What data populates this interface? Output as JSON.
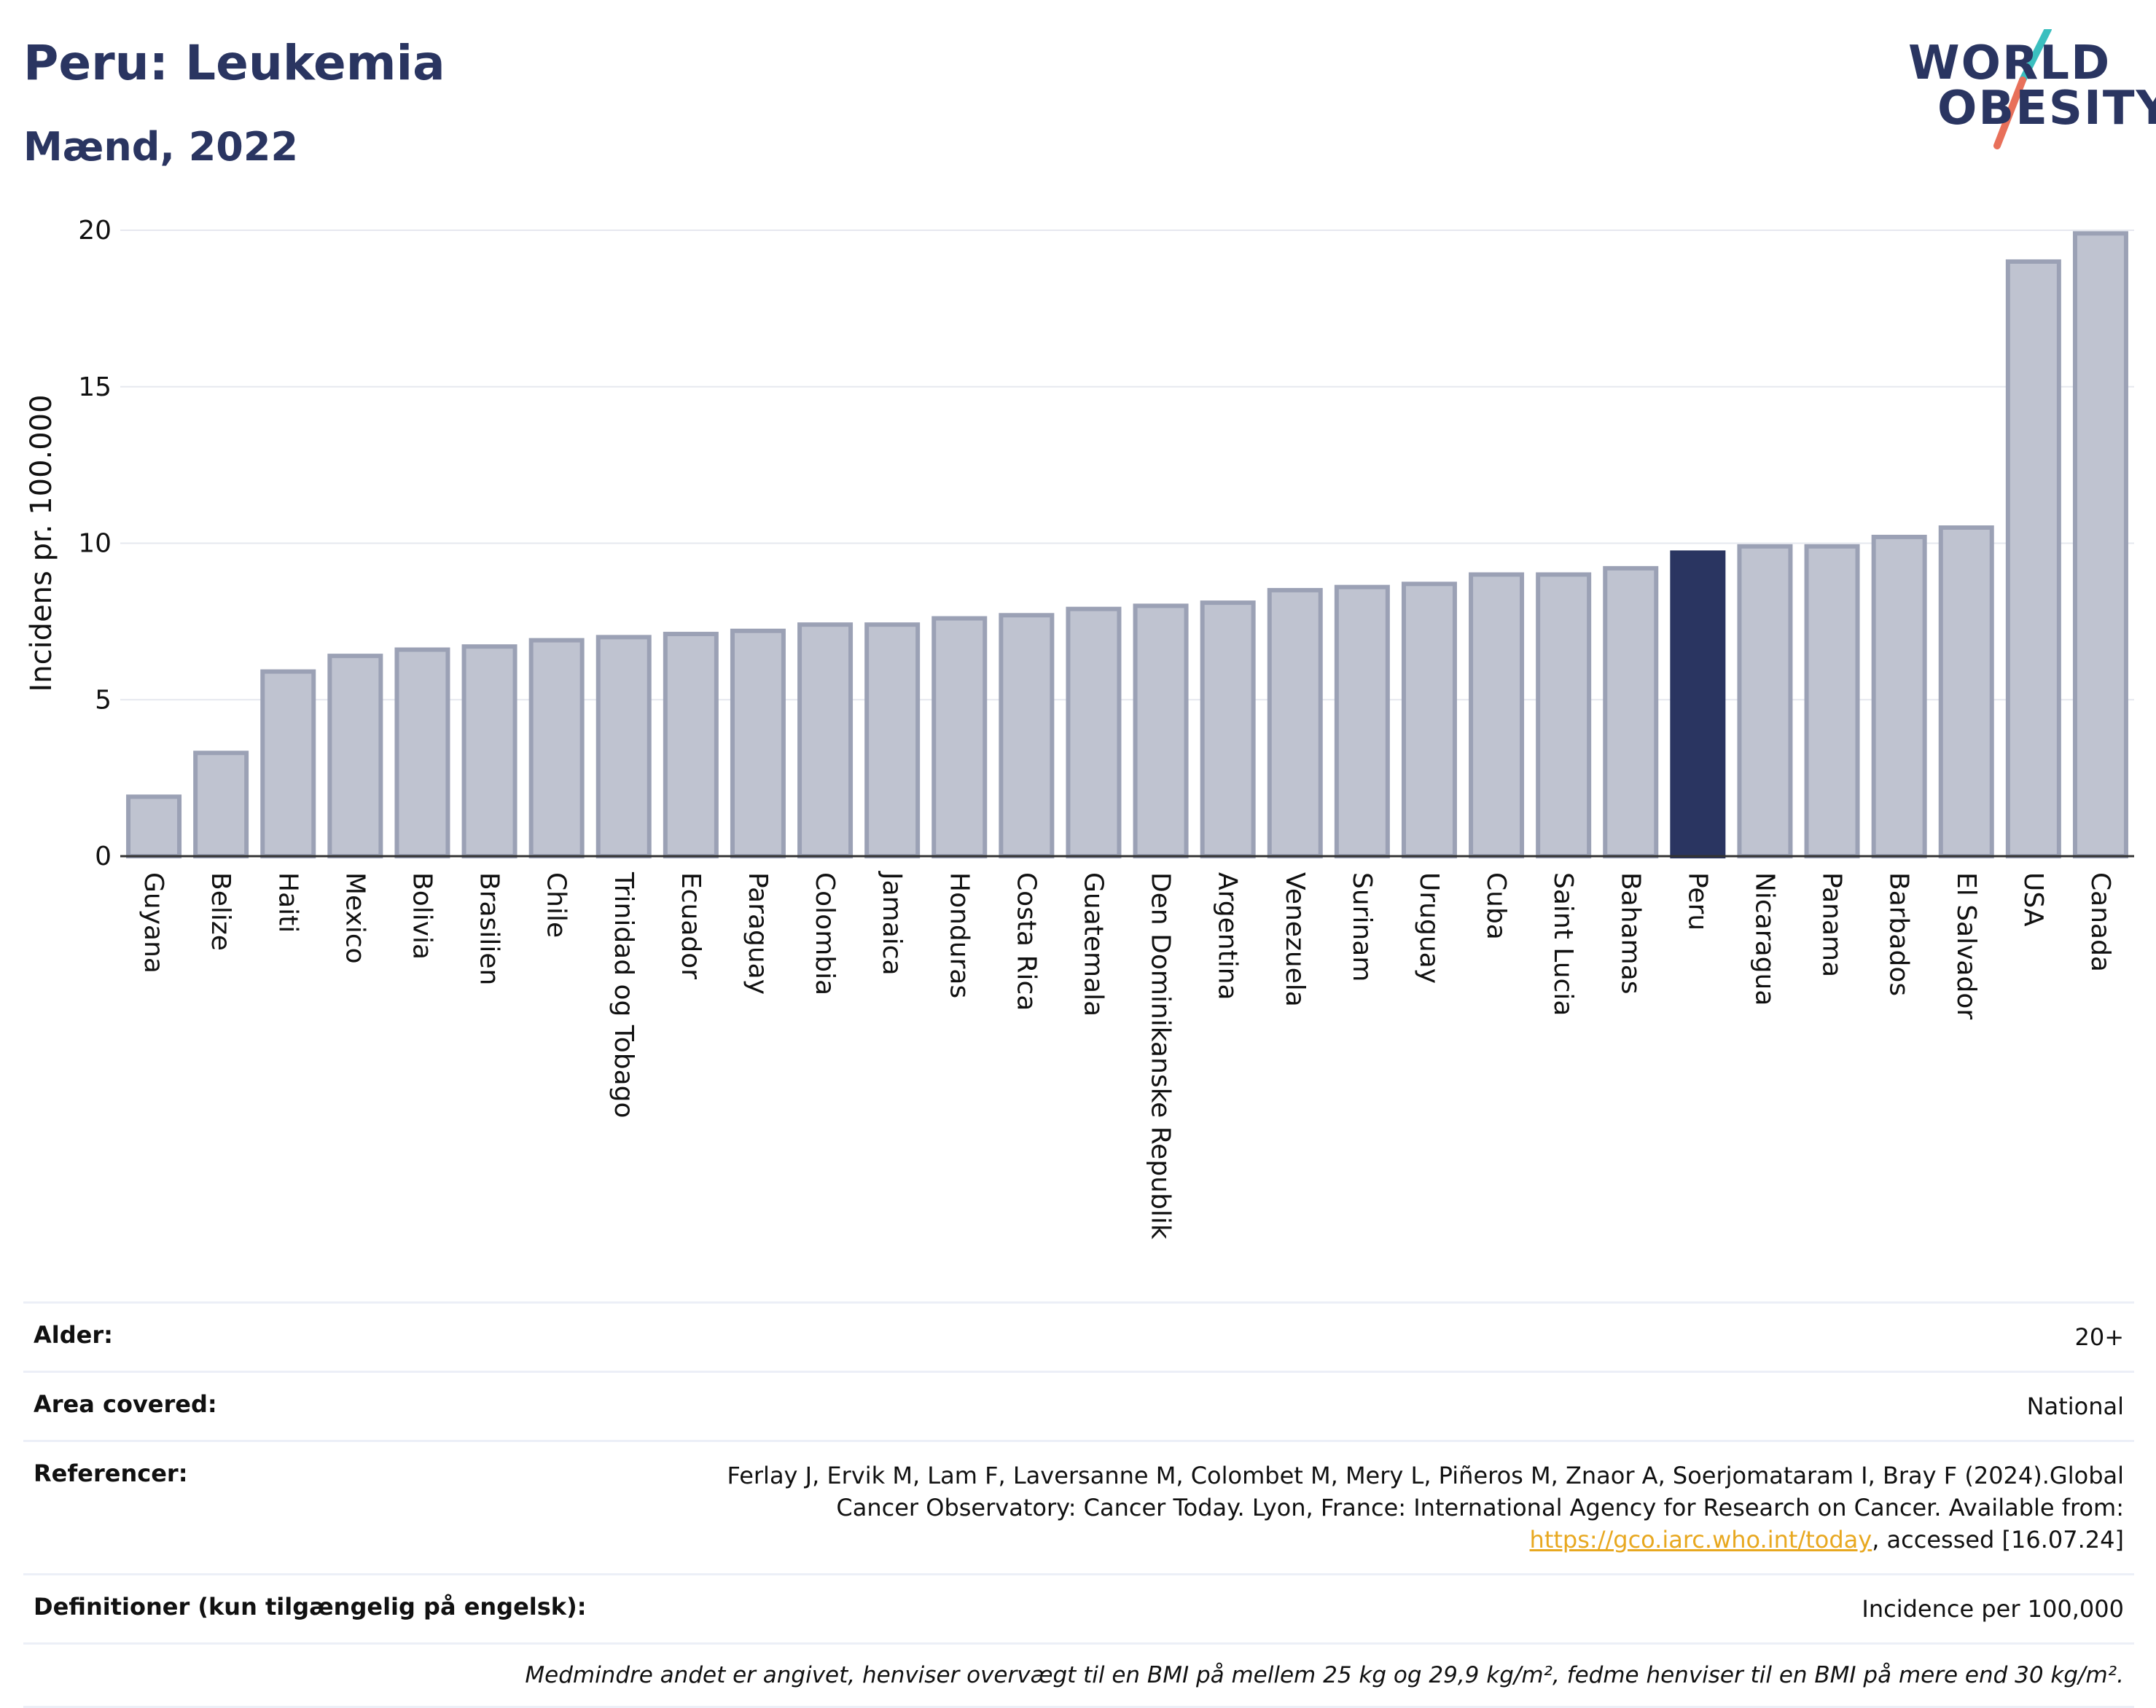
{
  "header": {
    "title": "Peru: Leukemia",
    "subtitle": "Mænd, 2022",
    "logo_line1": "WORLD",
    "logo_line2": "OBESITY"
  },
  "colors": {
    "bar_default": "#bfc3d0",
    "bar_default_stroke": "#9ba1b5",
    "bar_highlight": "#2a3561",
    "title": "#2a3561",
    "logo_teal": "#3bbfbf",
    "logo_coral": "#e8705a",
    "link": "#e8a820"
  },
  "chart_data": {
    "type": "bar",
    "title": "Peru: Leukemia",
    "subtitle": "Mænd, 2022",
    "xlabel": "",
    "ylabel": "Incidens pr. 100.000",
    "ylim": [
      0,
      20
    ],
    "yticks": [
      0,
      5,
      10,
      15,
      20
    ],
    "grid": true,
    "highlight": "Peru",
    "categories": [
      "Guyana",
      "Belize",
      "Haiti",
      "Mexico",
      "Bolivia",
      "Brasilien",
      "Chile",
      "Trinidad og Tobago",
      "Ecuador",
      "Paraguay",
      "Colombia",
      "Jamaica",
      "Honduras",
      "Costa Rica",
      "Guatemala",
      "Den Dominikanske Republik",
      "Argentina",
      "Venezuela",
      "Surinam",
      "Uruguay",
      "Cuba",
      "Saint Lucia",
      "Bahamas",
      "Peru",
      "Nicaragua",
      "Panama",
      "Barbados",
      "El Salvador",
      "USA",
      "Canada"
    ],
    "values": [
      1.9,
      3.3,
      5.9,
      6.4,
      6.6,
      6.7,
      6.9,
      7.0,
      7.1,
      7.2,
      7.4,
      7.4,
      7.6,
      7.7,
      7.9,
      8.0,
      8.1,
      8.5,
      8.6,
      8.7,
      9.0,
      9.0,
      9.2,
      9.7,
      9.9,
      9.9,
      10.2,
      10.5,
      19.0,
      19.9
    ]
  },
  "meta": {
    "age_label": "Alder:",
    "age_value": "20+",
    "area_label": "Area covered:",
    "area_value": "National",
    "refs_label": "Referencer:",
    "refs_value_pre": "Ferlay J, Ervik M, Lam F, Laversanne M, Colombet M, Mery L, Piñeros M, Znaor A, Soerjomataram I, Bray F (2024).Global Cancer Observatory: Cancer Today. Lyon, France: International Agency for Research on Cancer. Available from: ",
    "refs_link": "https://gco.iarc.who.int/today",
    "refs_value_post": ", accessed [16.07.24]",
    "defs_label": "Definitioner (kun tilgængelig på engelsk):",
    "defs_value": "Incidence per 100,000",
    "note": "Medmindre andet er angivet, henviser overvægt til en BMI på mellem 25 kg og 29,9 kg/m², fedme henviser til en BMI på mere end 30 kg/m²."
  }
}
